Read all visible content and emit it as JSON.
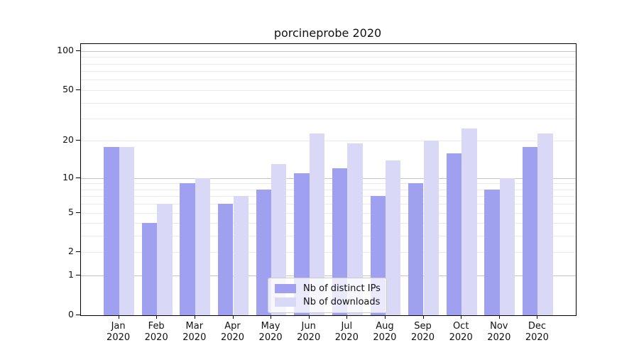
{
  "title": "porcineprobe 2020",
  "chart_data": {
    "type": "bar",
    "title": "porcineprobe 2020",
    "categories": [
      "Jan",
      "Feb",
      "Mar",
      "Apr",
      "May",
      "Jun",
      "Jul",
      "Aug",
      "Sep",
      "Oct",
      "Nov",
      "Dec"
    ],
    "xtick_year": "2020",
    "series": [
      {
        "name": "Nb of distinct IPs",
        "color": "#a0a0f0",
        "values": [
          18,
          4,
          9,
          6,
          8,
          11,
          12,
          7,
          9,
          16,
          8,
          18
        ]
      },
      {
        "name": "Nb of downloads",
        "color": "#d9d9f7",
        "values": [
          18,
          6,
          10,
          7,
          13,
          23,
          19,
          14,
          20,
          25,
          10,
          23
        ]
      }
    ],
    "xlabel": "",
    "ylabel": "",
    "yscale": "log1p",
    "ylim": [
      0,
      113
    ],
    "ytick_values": [
      100,
      50,
      20,
      10,
      5,
      2,
      1,
      0
    ],
    "major_gridlines": [
      1,
      10,
      100
    ],
    "minor_gridlines": [
      2,
      3,
      4,
      5,
      6,
      7,
      8,
      9,
      20,
      30,
      40,
      50,
      60,
      70,
      80,
      90
    ],
    "grid": true,
    "legend_position": "lower center"
  }
}
